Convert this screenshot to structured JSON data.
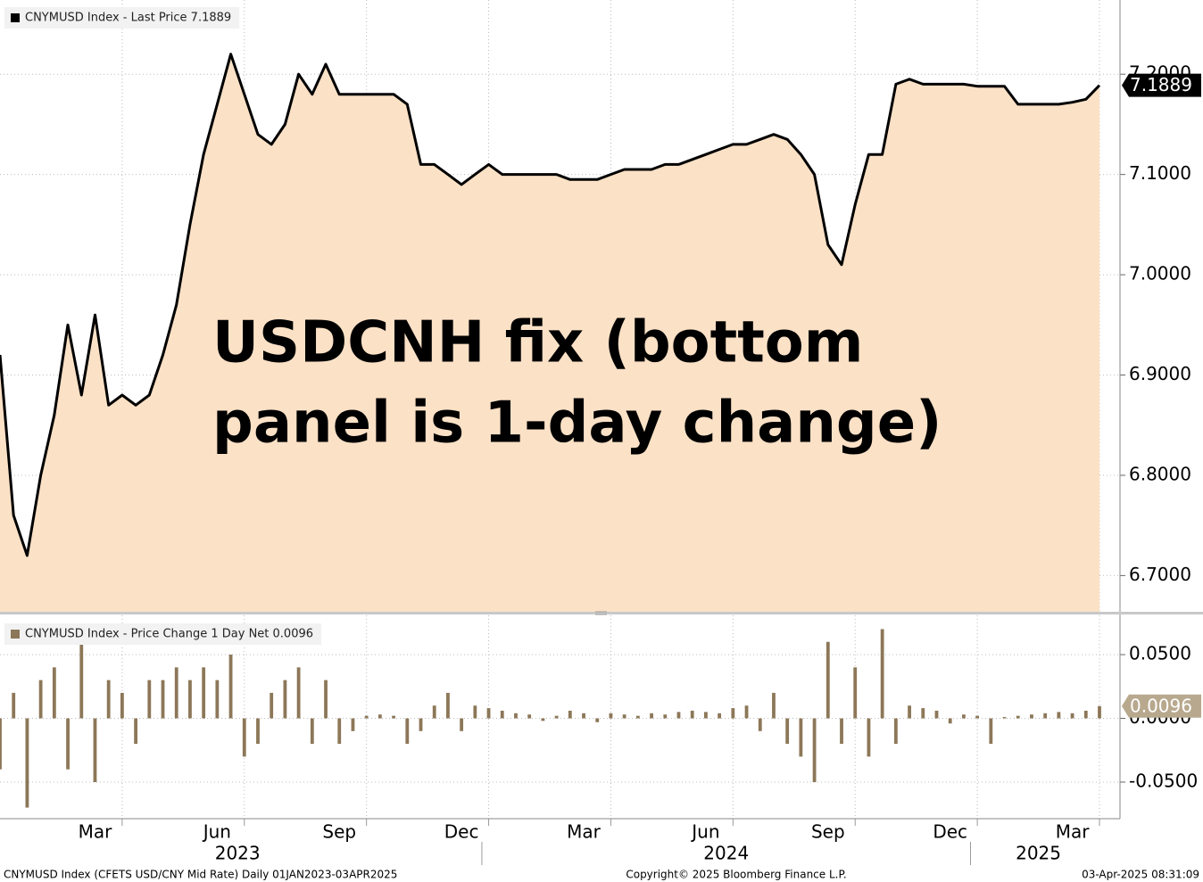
{
  "chart_data": [
    {
      "type": "area",
      "series": [
        {
          "name": "CNYMUSD Index - Last Price 7.1889",
          "color": "#000000",
          "fill": "#fbe1c6",
          "values": [
            6.92,
            6.76,
            6.72,
            6.8,
            6.86,
            6.95,
            6.88,
            6.96,
            6.87,
            6.88,
            6.87,
            6.88,
            6.92,
            6.97,
            7.05,
            7.12,
            7.17,
            7.22,
            7.18,
            7.14,
            7.13,
            7.15,
            7.2,
            7.18,
            7.21,
            7.18,
            7.18,
            7.18,
            7.18,
            7.18,
            7.17,
            7.11,
            7.11,
            7.1,
            7.09,
            7.1,
            7.11,
            7.1,
            7.1,
            7.1,
            7.1,
            7.1,
            7.095,
            7.095,
            7.095,
            7.1,
            7.105,
            7.105,
            7.105,
            7.11,
            7.11,
            7.115,
            7.12,
            7.125,
            7.13,
            7.13,
            7.135,
            7.14,
            7.135,
            7.12,
            7.1,
            7.03,
            7.01,
            7.07,
            7.12,
            7.12,
            7.19,
            7.195,
            7.19,
            7.19,
            7.19,
            7.19,
            7.188,
            7.188,
            7.188,
            7.17,
            7.17,
            7.17,
            7.17,
            7.172,
            7.175,
            7.1889
          ]
        }
      ],
      "x": [
        "2023-01",
        "2023-01",
        "2023-01",
        "2023-02",
        "2023-02",
        "2023-02",
        "2023-03",
        "2023-03",
        "2023-03",
        "2023-04",
        "2023-04",
        "2023-04",
        "2023-05",
        "2023-05",
        "2023-05",
        "2023-06",
        "2023-06",
        "2023-06",
        "2023-07",
        "2023-07",
        "2023-07",
        "2023-08",
        "2023-08",
        "2023-08",
        "2023-09",
        "2023-09",
        "2023-09",
        "2023-10",
        "2023-10",
        "2023-10",
        "2023-11",
        "2023-11",
        "2023-11",
        "2023-12",
        "2023-12",
        "2023-12",
        "2024-01",
        "2024-01",
        "2024-01",
        "2024-02",
        "2024-02",
        "2024-02",
        "2024-03",
        "2024-03",
        "2024-03",
        "2024-04",
        "2024-04",
        "2024-04",
        "2024-05",
        "2024-05",
        "2024-05",
        "2024-06",
        "2024-06",
        "2024-06",
        "2024-07",
        "2024-07",
        "2024-07",
        "2024-08",
        "2024-08",
        "2024-08",
        "2024-09",
        "2024-09",
        "2024-09",
        "2024-10",
        "2024-10",
        "2024-10",
        "2024-11",
        "2024-11",
        "2024-11",
        "2024-12",
        "2024-12",
        "2024-12",
        "2025-01",
        "2025-01",
        "2025-01",
        "2025-02",
        "2025-02",
        "2025-02",
        "2025-03",
        "2025-03",
        "2025-03",
        "2025-04"
      ],
      "ylim": [
        6.663,
        7.274
      ],
      "yticks": [
        {
          "value": 6.7,
          "label": "6.7000"
        },
        {
          "value": 6.8,
          "label": "6.8000"
        },
        {
          "value": 6.9,
          "label": "6.9000"
        },
        {
          "value": 7.0,
          "label": "7.0000"
        },
        {
          "value": 7.1,
          "label": "7.1000"
        },
        {
          "value": 7.2,
          "label": "7.2000"
        }
      ],
      "grid": true,
      "annotation": [
        "USDCNH fix (bottom",
        "panel is 1-day change)"
      ]
    },
    {
      "type": "bar",
      "series": [
        {
          "name": "CNYMUSD Index - Price Change 1 Day Net 0.0096",
          "color": "#8c7758",
          "values": [
            -0.04,
            0.02,
            -0.07,
            0.03,
            0.04,
            -0.04,
            0.06,
            -0.05,
            0.03,
            0.02,
            -0.02,
            0.03,
            0.03,
            0.04,
            0.03,
            0.04,
            0.03,
            0.05,
            -0.03,
            -0.02,
            0.02,
            0.03,
            0.04,
            -0.02,
            0.03,
            -0.02,
            -0.01,
            0.002,
            0.003,
            0.002,
            -0.02,
            -0.01,
            0.01,
            0.02,
            -0.01,
            0.01,
            0.008,
            0.006,
            0.004,
            0.003,
            -0.002,
            0.002,
            0.006,
            0.004,
            -0.003,
            0.004,
            0.003,
            0.002,
            0.004,
            0.003,
            0.005,
            0.006,
            0.005,
            0.004,
            0.008,
            0.01,
            -0.01,
            0.02,
            -0.02,
            -0.03,
            -0.05,
            0.06,
            -0.02,
            0.04,
            -0.03,
            0.07,
            -0.02,
            0.01,
            0.008,
            0.006,
            -0.004,
            0.003,
            0.002,
            -0.02,
            0.001,
            0.002,
            0.003,
            0.004,
            0.005,
            0.004,
            0.006,
            0.0096
          ]
        }
      ],
      "ylim": [
        -0.0787,
        0.0808
      ],
      "yticks": [
        {
          "value": -0.05,
          "label": "-0.0500"
        },
        {
          "value": 0,
          "label": "0.0000"
        },
        {
          "value": 0.05,
          "label": "0.0500"
        }
      ],
      "grid": true,
      "xticks": [
        {
          "value": "2023-03",
          "label": "Mar"
        },
        {
          "value": "2023-06",
          "label": "Jun"
        },
        {
          "value": "2023-09",
          "label": "Sep"
        },
        {
          "value": "2023-12",
          "label": "Dec"
        },
        {
          "value": "2024-03",
          "label": "Mar"
        },
        {
          "value": "2024-06",
          "label": "Jun"
        },
        {
          "value": "2024-09",
          "label": "Sep"
        },
        {
          "value": "2024-12",
          "label": "Dec"
        },
        {
          "value": "2025-03",
          "label": "Mar"
        }
      ],
      "xgroups": [
        "2023",
        "2024",
        "2025"
      ]
    }
  ],
  "footer": {
    "left": "CNYMUSD Index (CFETS USD/CNY Mid Rate)  Daily 01JAN2023-03APR2025",
    "center": "Copyright© 2025 Bloomberg Finance L.P.",
    "right": "03-Apr-2025 08:31:09"
  }
}
